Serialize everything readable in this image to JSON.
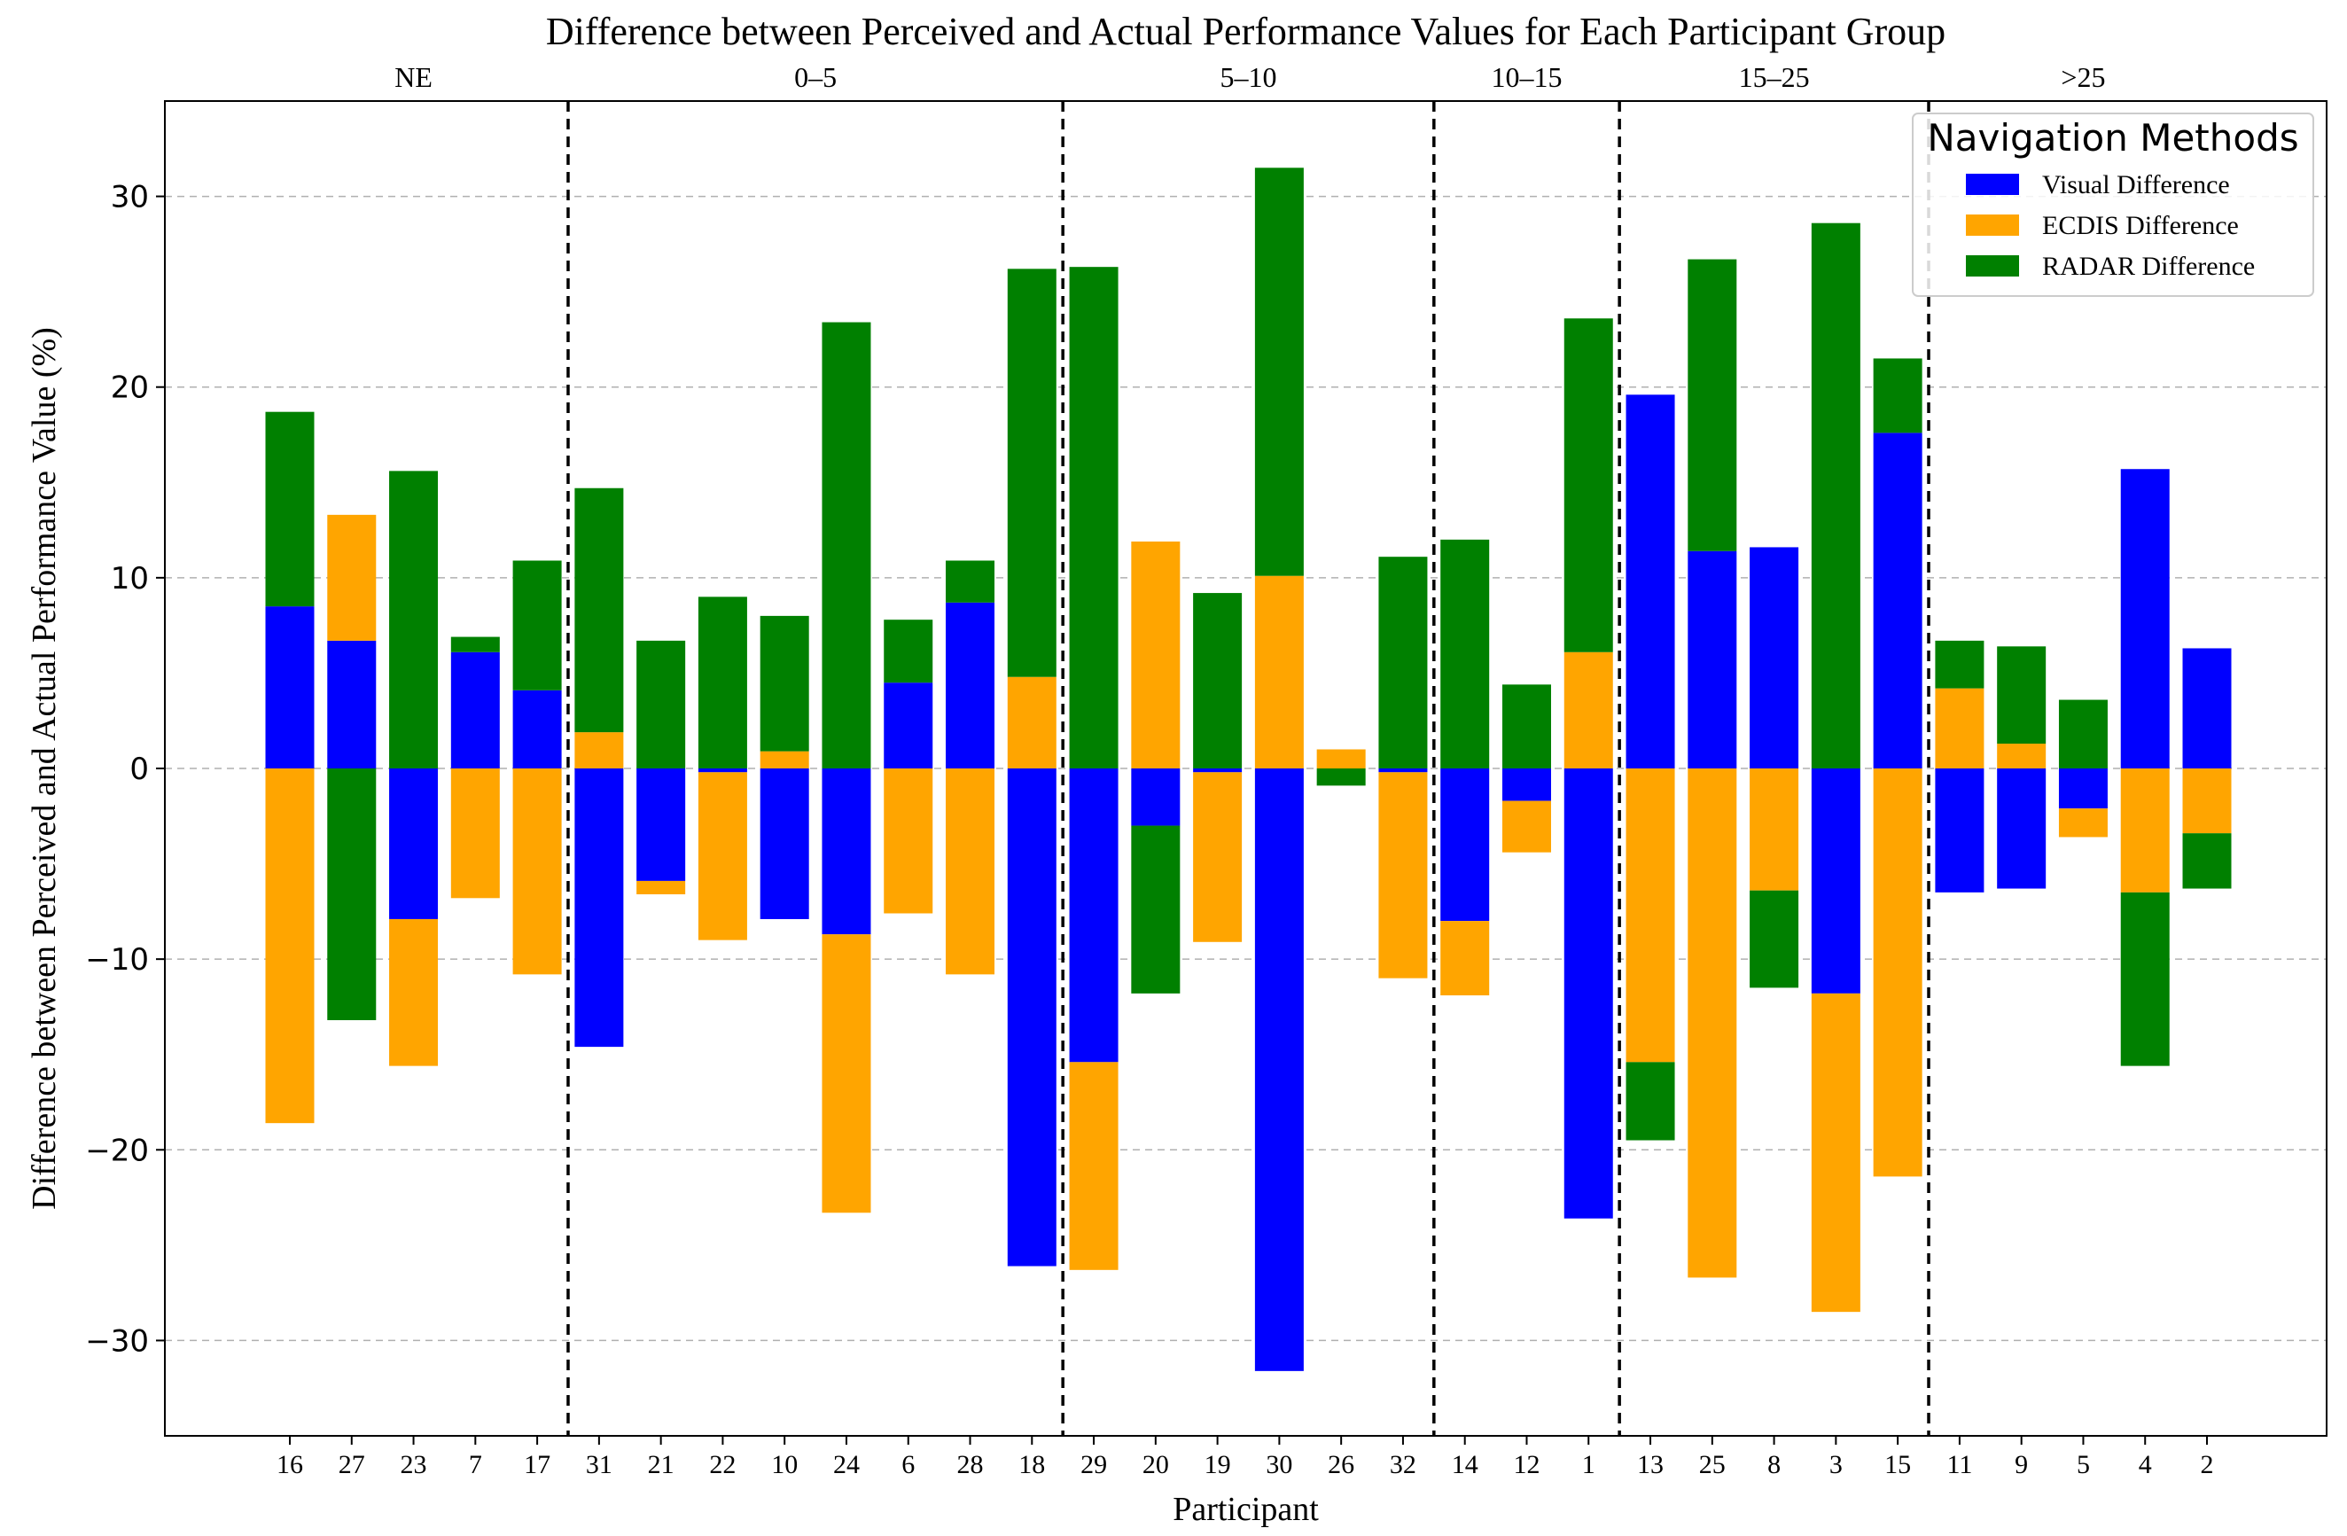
{
  "chart_data": {
    "type": "bar",
    "stacked": true,
    "title": "Difference between Perceived and Actual Performance Values for Each Participant Group",
    "xlabel": "Participant",
    "ylabel": "Difference between Perceived and Actual Performance Value (%)",
    "ylim": [
      -35,
      35
    ],
    "yticks": [
      -30,
      -20,
      -10,
      0,
      10,
      20,
      30
    ],
    "ytick_labels": [
      "−30",
      "−20",
      "−10",
      "0",
      "10",
      "20",
      "30"
    ],
    "grid": "horizontal dashed",
    "legend": {
      "title": "Navigation Methods",
      "placement": "top-right"
    },
    "categories": [
      "16",
      "27",
      "23",
      "7",
      "17",
      "31",
      "21",
      "22",
      "10",
      "24",
      "6",
      "28",
      "18",
      "29",
      "20",
      "19",
      "30",
      "26",
      "32",
      "14",
      "12",
      "1",
      "13",
      "25",
      "8",
      "3",
      "15",
      "11",
      "9",
      "5",
      "4",
      "2"
    ],
    "groups": [
      {
        "label": "NE",
        "count": 5
      },
      {
        "label": "0–5",
        "count": 8
      },
      {
        "label": "5–10",
        "count": 6
      },
      {
        "label": "10–15",
        "count": 3
      },
      {
        "label": "15–25",
        "count": 5
      },
      {
        "label": ">25",
        "count": 5
      }
    ],
    "series": [
      {
        "name": "Visual Difference",
        "color": "#0000ff",
        "values": [
          8.5,
          6.7,
          -7.9,
          6.1,
          4.1,
          -14.6,
          -5.9,
          -0.2,
          -7.9,
          -8.7,
          4.5,
          8.7,
          -26.1,
          -15.4,
          -3.0,
          -0.2,
          -31.6,
          0.0,
          -0.2,
          -8.0,
          -1.7,
          -23.6,
          19.6,
          11.4,
          11.6,
          -11.8,
          17.6,
          -6.5,
          -6.3,
          -2.1,
          15.7,
          6.3
        ]
      },
      {
        "name": "ECDIS Difference",
        "color": "#ffa500",
        "values": [
          -18.6,
          6.6,
          -7.7,
          -6.8,
          -10.8,
          1.9,
          -0.7,
          -8.8,
          0.9,
          -14.6,
          -7.6,
          -10.8,
          4.8,
          -10.9,
          11.9,
          -8.9,
          10.1,
          1.0,
          -10.8,
          -3.9,
          -2.7,
          6.1,
          -15.4,
          -26.7,
          -6.4,
          -16.7,
          -21.4,
          4.2,
          1.3,
          -1.5,
          -6.5,
          -3.4
        ]
      },
      {
        "name": "RADAR Difference",
        "color": "#008000",
        "values": [
          10.2,
          -13.2,
          15.6,
          0.8,
          6.8,
          12.8,
          6.7,
          9.0,
          7.1,
          23.4,
          3.3,
          2.2,
          21.4,
          26.3,
          -8.8,
          9.2,
          21.4,
          -0.9,
          11.1,
          12.0,
          4.4,
          17.5,
          -4.1,
          15.3,
          -5.1,
          28.6,
          3.9,
          2.5,
          5.1,
          3.6,
          -9.1,
          -2.9
        ]
      }
    ]
  }
}
